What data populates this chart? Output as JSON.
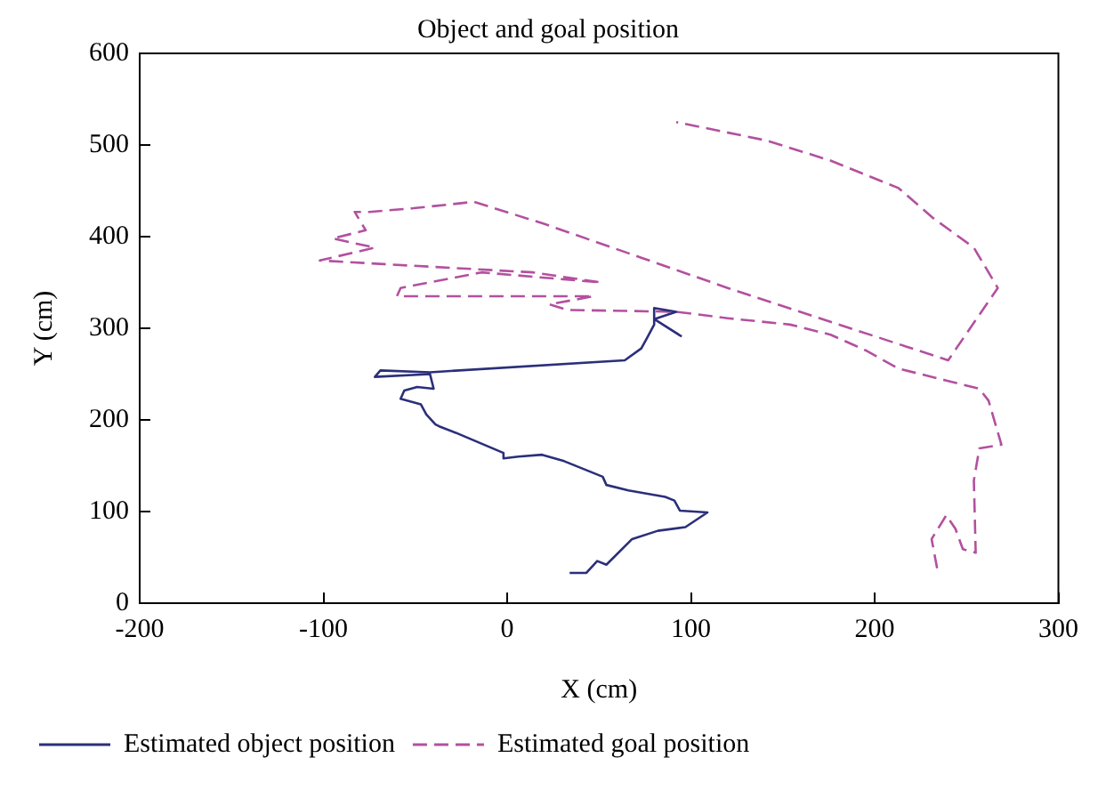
{
  "chart_data": {
    "type": "line",
    "title": "Object and goal position",
    "xlabel": "X (cm)",
    "ylabel": "Y (cm)",
    "xlim": [
      -200,
      300
    ],
    "xticks": [
      -200,
      -100,
      0,
      100,
      200,
      300
    ],
    "ylim": [
      0,
      600
    ],
    "yticks": [
      0,
      100,
      200,
      300,
      400,
      500,
      600
    ],
    "grid": false,
    "legend": "bottom",
    "series": [
      {
        "name": "Estimated object position",
        "color": "#2b2f7a",
        "line_style": "solid",
        "x": [
          34,
          43,
          49,
          54,
          68,
          82,
          97,
          109,
          94,
          91,
          86,
          66,
          54,
          52,
          31,
          19,
          6,
          -2,
          -2,
          -28,
          -37,
          -39,
          -44,
          -47,
          -58,
          -56,
          -49,
          -40,
          -42,
          -72,
          -69,
          -42,
          64,
          73,
          76,
          80,
          80,
          92,
          80,
          95
        ],
        "values": [
          33,
          33,
          46,
          42,
          70,
          79,
          83,
          99,
          101,
          112,
          116,
          123,
          129,
          138,
          155,
          162,
          160,
          158,
          164,
          186,
          193,
          195,
          206,
          217,
          223,
          232,
          236,
          234,
          250,
          247,
          254,
          252,
          265,
          278,
          289,
          304,
          322,
          318,
          310,
          291
        ]
      },
      {
        "name": "Estimated goal position",
        "color": "#b3509f",
        "line_style": "dashed",
        "x": [
          234,
          231,
          239,
          244,
          248,
          255,
          254,
          257,
          269,
          262,
          257,
          239,
          213,
          195,
          176,
          154,
          120,
          92,
          33,
          23,
          47,
          -60,
          -58,
          -14,
          51,
          14,
          -67,
          -102,
          -72,
          -95,
          -77,
          -83,
          -75,
          -51,
          -18,
          20,
          73,
          120,
          240,
          267,
          254,
          232,
          213,
          176,
          141,
          92
        ],
        "values": [
          38,
          70,
          96,
          81,
          59,
          55,
          134,
          169,
          173,
          221,
          234,
          243,
          256,
          276,
          293,
          304,
          311,
          318,
          320,
          326,
          335,
          335,
          344,
          361,
          350,
          361,
          370,
          374,
          388,
          398,
          407,
          427,
          427,
          431,
          438,
          414,
          377,
          344,
          265,
          344,
          388,
          420,
          453,
          483,
          505,
          525
        ]
      }
    ]
  }
}
